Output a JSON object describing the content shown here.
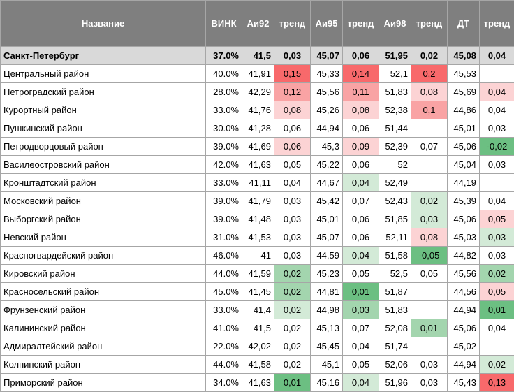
{
  "columns": [
    "Название",
    "ВИНК",
    "Аи92",
    "тренд",
    "Аи95",
    "тренд",
    "Аи98",
    "тренд",
    "ДТ",
    "тренд"
  ],
  "colors": {
    "header_bg": "#7f7f7f",
    "total_bg": "#d9d9d9",
    "red_strong": "#f8696b",
    "red_mid": "#f9a3a4",
    "red_light": "#fcd3d4",
    "green_strong": "#6cbf82",
    "green_mid": "#a3d5ae",
    "green_light": "#d3ead7"
  },
  "rows": [
    {
      "name": "Санкт-Петербург",
      "vink": "37.0%",
      "ai92": "41,5",
      "t92": "0,03",
      "ai95": "45,07",
      "t95": "0,06",
      "ai98": "51,95",
      "t98": "0,02",
      "dt": "45,08",
      "tdt": "0,04",
      "total": true
    },
    {
      "name": "Центральный район",
      "vink": "40.0%",
      "ai92": "41,91",
      "t92": "0,15",
      "ai95": "45,33",
      "t95": "0,14",
      "ai98": "52,1",
      "t98": "0,2",
      "dt": "45,53",
      "tdt": "",
      "c92": "red_strong",
      "c95": "red_strong",
      "c98": "red_strong"
    },
    {
      "name": "Петроградский район",
      "vink": "28.0%",
      "ai92": "42,29",
      "t92": "0,12",
      "ai95": "45,56",
      "t95": "0,11",
      "ai98": "51,83",
      "t98": "0,08",
      "dt": "45,69",
      "tdt": "0,04",
      "c92": "red_mid",
      "c95": "red_mid",
      "c98": "red_light",
      "cdt": "red_light"
    },
    {
      "name": "Курортный район",
      "vink": "33.0%",
      "ai92": "41,76",
      "t92": "0,08",
      "ai95": "45,26",
      "t95": "0,08",
      "ai98": "52,38",
      "t98": "0,1",
      "dt": "44,86",
      "tdt": "0,04",
      "c92": "red_light",
      "c95": "red_light",
      "c98": "red_mid"
    },
    {
      "name": "Пушкинский район",
      "vink": "30.0%",
      "ai92": "41,28",
      "t92": "0,06",
      "ai95": "44,94",
      "t95": "0,06",
      "ai98": "51,44",
      "t98": "",
      "dt": "45,01",
      "tdt": "0,03"
    },
    {
      "name": "Петродворцовый район",
      "vink": "39.0%",
      "ai92": "41,69",
      "t92": "0,06",
      "ai95": "45,3",
      "t95": "0,09",
      "ai98": "52,39",
      "t98": "0,07",
      "dt": "45,06",
      "tdt": "-0,02",
      "c92": "red_light",
      "c95": "red_light",
      "cdt": "green_strong"
    },
    {
      "name": "Василеостровский район",
      "vink": "42.0%",
      "ai92": "41,63",
      "t92": "0,05",
      "ai95": "45,22",
      "t95": "0,06",
      "ai98": "52",
      "t98": "",
      "dt": "45,04",
      "tdt": "0,03"
    },
    {
      "name": "Кронштадтский район",
      "vink": "33.0%",
      "ai92": "41,11",
      "t92": "0,04",
      "ai95": "44,67",
      "t95": "0,04",
      "ai98": "52,49",
      "t98": "",
      "dt": "44,19",
      "tdt": "",
      "c95": "green_light"
    },
    {
      "name": "Московский район",
      "vink": "39.0%",
      "ai92": "41,79",
      "t92": "0,03",
      "ai95": "45,42",
      "t95": "0,07",
      "ai98": "52,43",
      "t98": "0,02",
      "dt": "45,39",
      "tdt": "0,04",
      "c98": "green_light"
    },
    {
      "name": "Выборгский район",
      "vink": "39.0%",
      "ai92": "41,48",
      "t92": "0,03",
      "ai95": "45,01",
      "t95": "0,06",
      "ai98": "51,85",
      "t98": "0,03",
      "dt": "45,06",
      "tdt": "0,05",
      "c98": "green_light",
      "cdt": "red_light"
    },
    {
      "name": "Невский район",
      "vink": "31.0%",
      "ai92": "41,53",
      "t92": "0,03",
      "ai95": "45,07",
      "t95": "0,06",
      "ai98": "52,11",
      "t98": "0,08",
      "dt": "45,03",
      "tdt": "0,03",
      "c98": "red_light",
      "cdt": "green_light"
    },
    {
      "name": "Красногвардейский район",
      "vink": "46.0%",
      "ai92": "41",
      "t92": "0,03",
      "ai95": "44,59",
      "t95": "0,04",
      "ai98": "51,58",
      "t98": "-0,05",
      "dt": "44,82",
      "tdt": "0,03",
      "c95": "green_light",
      "c98": "green_strong"
    },
    {
      "name": "Кировский район",
      "vink": "44.0%",
      "ai92": "41,59",
      "t92": "0,02",
      "ai95": "45,23",
      "t95": "0,05",
      "ai98": "52,5",
      "t98": "0,05",
      "dt": "45,56",
      "tdt": "0,02",
      "c92": "green_mid",
      "cdt": "green_mid"
    },
    {
      "name": "Красносельский район",
      "vink": "45.0%",
      "ai92": "41,45",
      "t92": "0,02",
      "ai95": "44,81",
      "t95": "0,01",
      "ai98": "51,87",
      "t98": "",
      "dt": "44,56",
      "tdt": "0,05",
      "c92": "green_mid",
      "c95": "green_strong",
      "cdt": "red_light"
    },
    {
      "name": "Фрунзенский район",
      "vink": "33.0%",
      "ai92": "41,4",
      "t92": "0,02",
      "ai95": "44,98",
      "t95": "0,03",
      "ai98": "51,83",
      "t98": "",
      "dt": "44,94",
      "tdt": "0,01",
      "c92": "green_light",
      "c95": "green_mid",
      "cdt": "green_strong"
    },
    {
      "name": "Калининский район",
      "vink": "41.0%",
      "ai92": "41,5",
      "t92": "0,02",
      "ai95": "45,13",
      "t95": "0,07",
      "ai98": "52,08",
      "t98": "0,01",
      "dt": "45,06",
      "tdt": "0,04",
      "c98": "green_mid"
    },
    {
      "name": "Адмиралтейский район",
      "vink": "22.0%",
      "ai92": "42,02",
      "t92": "0,02",
      "ai95": "45,45",
      "t95": "0,04",
      "ai98": "51,74",
      "t98": "",
      "dt": "45,02",
      "tdt": ""
    },
    {
      "name": "Колпинский район",
      "vink": "44.0%",
      "ai92": "41,58",
      "t92": "0,02",
      "ai95": "45,1",
      "t95": "0,05",
      "ai98": "52,06",
      "t98": "0,03",
      "dt": "44,94",
      "tdt": "0,02",
      "cdt": "green_light"
    },
    {
      "name": "Приморский район",
      "vink": "34.0%",
      "ai92": "41,63",
      "t92": "0,01",
      "ai95": "45,16",
      "t95": "0,04",
      "ai98": "51,96",
      "t98": "0,03",
      "dt": "45,43",
      "tdt": "0,13",
      "c92": "green_strong",
      "c95": "green_light",
      "cdt": "red_strong"
    }
  ]
}
